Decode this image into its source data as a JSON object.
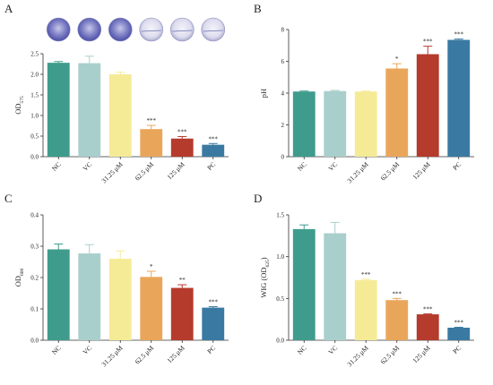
{
  "bar_colors": [
    "#3f9c8c",
    "#a9cfcc",
    "#f5eb97",
    "#e9a65a",
    "#b53b2c",
    "#3a7aa2"
  ],
  "chart_data": [
    {
      "panel": "A",
      "type": "bar",
      "categories": [
        "NC",
        "VC",
        "31.25 μM",
        "62.5 μM",
        "125 μM",
        "PC"
      ],
      "values": [
        2.28,
        2.27,
        2.0,
        0.67,
        0.44,
        0.29
      ],
      "errors": [
        0.03,
        0.17,
        0.05,
        0.09,
        0.05,
        0.03
      ],
      "significance": [
        "",
        "",
        "",
        "***",
        "***",
        "***"
      ],
      "ylabel": "OD",
      "ylabel_sub": "575",
      "ylim": [
        0,
        2.5
      ],
      "yticks": [
        "0.0",
        "0.5",
        "1.0",
        "1.5",
        "2.0",
        "2.5"
      ],
      "images": [
        "well-purple",
        "well-purple",
        "well-purple",
        "well-pale",
        "well-pale",
        "well-pale"
      ]
    },
    {
      "panel": "B",
      "type": "bar",
      "categories": [
        "NC",
        "VC",
        "31.25 μM",
        "62.5 μM",
        "125 μM",
        "PC"
      ],
      "values": [
        4.1,
        4.13,
        4.1,
        5.55,
        6.45,
        7.35
      ],
      "errors": [
        0.03,
        0.04,
        0.03,
        0.3,
        0.5,
        0.05
      ],
      "significance": [
        "",
        "",
        "",
        "*",
        "***",
        "***"
      ],
      "ylabel": "pH",
      "ylabel_sub": "",
      "ylim": [
        0,
        8
      ],
      "yticks": [
        "0",
        "2",
        "4",
        "6",
        "8"
      ]
    },
    {
      "panel": "C",
      "type": "bar",
      "categories": [
        "NC",
        "VC",
        "31.25 μM",
        "62.5 μM",
        "125 μM",
        "PC"
      ],
      "values": [
        0.29,
        0.277,
        0.26,
        0.202,
        0.167,
        0.104
      ],
      "errors": [
        0.017,
        0.028,
        0.025,
        0.018,
        0.01,
        0.003
      ],
      "significance": [
        "",
        "",
        "",
        "*",
        "**",
        "***"
      ],
      "ylabel": "OD",
      "ylabel_sub": "600",
      "ylim": [
        0,
        0.4
      ],
      "yticks": [
        "0.0",
        "0.1",
        "0.2",
        "0.3",
        "0.4"
      ]
    },
    {
      "panel": "D",
      "type": "bar",
      "categories": [
        "NC",
        "VC",
        "31.25 μM",
        "62.5 μM",
        "125 μM",
        "PC"
      ],
      "values": [
        1.33,
        1.28,
        0.72,
        0.48,
        0.31,
        0.15
      ],
      "errors": [
        0.05,
        0.13,
        0.01,
        0.02,
        0.005,
        0.005
      ],
      "significance": [
        "",
        "",
        "***",
        "***",
        "***",
        "***"
      ],
      "ylabel": "WIG (OD",
      "ylabel_sub": "625",
      "ylabel_suffix": ")",
      "ylim": [
        0,
        1.5
      ],
      "yticks": [
        "0.0",
        "0.5",
        "1.0",
        "1.5"
      ]
    }
  ]
}
